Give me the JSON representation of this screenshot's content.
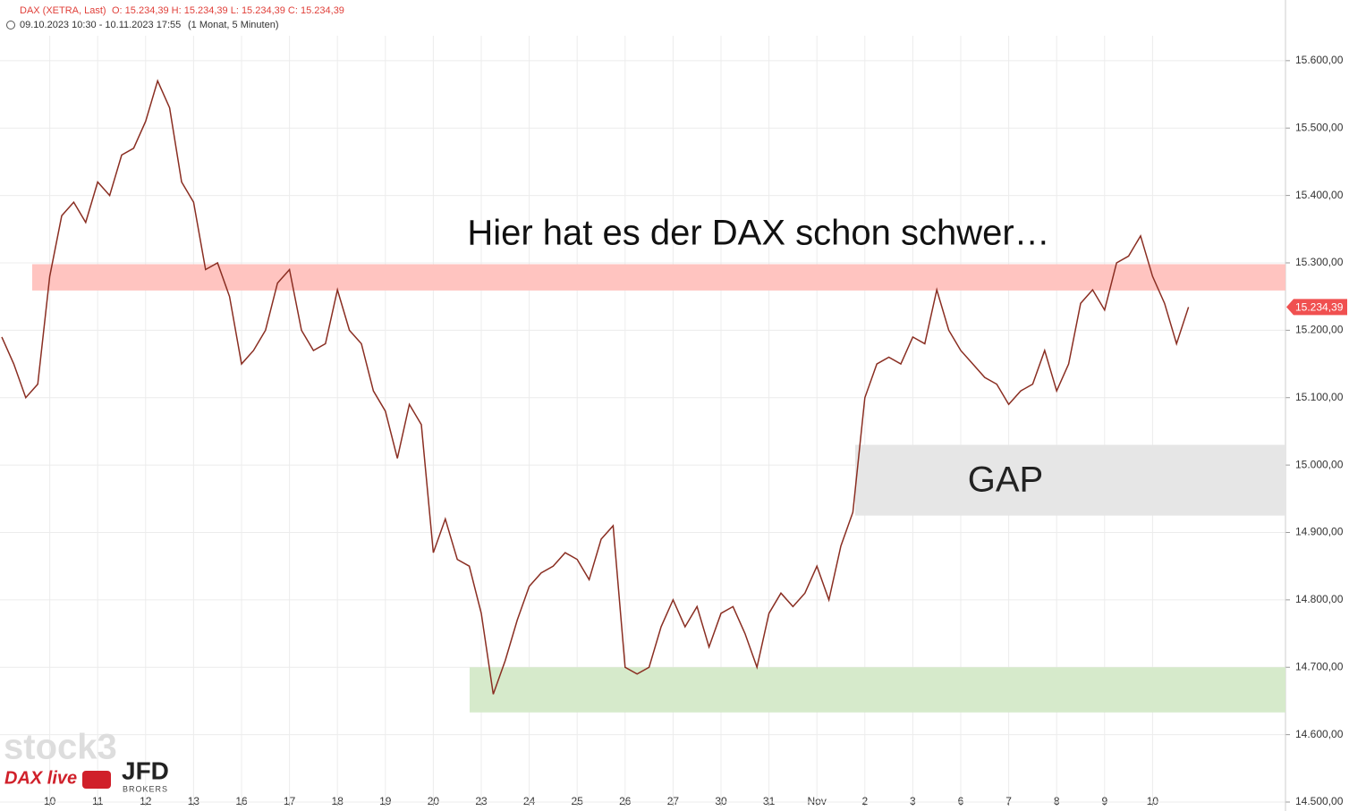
{
  "chart_data": {
    "type": "line",
    "header": {
      "instrument": "DAX (XETRA, Last)",
      "ohlc": "O: 15.234,39  H: 15.234,39  L: 15.234,39  C: 15.234,39",
      "range": "09.10.2023 10:30 - 10.11.2023 17:55",
      "period": "(1 Monat, 5 Minuten)"
    },
    "categories": [
      null,
      null,
      null,
      null,
      "10",
      null,
      null,
      null,
      "11",
      null,
      null,
      null,
      "12",
      null,
      null,
      null,
      "13",
      null,
      null,
      null,
      "16",
      null,
      null,
      null,
      "17",
      null,
      null,
      null,
      "18",
      null,
      null,
      null,
      "19",
      null,
      null,
      null,
      "20",
      null,
      null,
      null,
      "23",
      null,
      null,
      null,
      "24",
      null,
      null,
      null,
      "25",
      null,
      null,
      null,
      "26",
      null,
      null,
      null,
      "27",
      null,
      null,
      null,
      "30",
      null,
      null,
      null,
      "31",
      null,
      null,
      null,
      "Nov",
      null,
      null,
      null,
      "2",
      null,
      null,
      null,
      "3",
      null,
      null,
      null,
      "6",
      null,
      null,
      null,
      "7",
      null,
      null,
      null,
      "8",
      null,
      null,
      null,
      "9",
      null,
      null,
      null,
      "10",
      null,
      null,
      null
    ],
    "series": [
      {
        "color": "#8a2e22",
        "values": [
          15190,
          15150,
          15100,
          15120,
          15280,
          15370,
          15390,
          15360,
          15420,
          15400,
          15460,
          15470,
          15510,
          15570,
          15530,
          15420,
          15390,
          15290,
          15300,
          15250,
          15150,
          15170,
          15200,
          15270,
          15290,
          15200,
          15170,
          15180,
          15260,
          15200,
          15180,
          15110,
          15080,
          15010,
          15090,
          15060,
          14870,
          14920,
          14860,
          14850,
          14780,
          14660,
          14710,
          14770,
          14820,
          14840,
          14850,
          14870,
          14860,
          14830,
          14890,
          14910,
          14700,
          14690,
          14700,
          14760,
          14800,
          14760,
          14790,
          14730,
          14780,
          14790,
          14750,
          14700,
          14780,
          14810,
          14790,
          14810,
          14850,
          14800,
          14880,
          14930,
          15100,
          15150,
          15160,
          15150,
          15190,
          15180,
          15260,
          15200,
          15170,
          15150,
          15130,
          15120,
          15090,
          15110,
          15120,
          15170,
          15110,
          15150,
          15240,
          15260,
          15230,
          15300,
          15310,
          15340,
          15280,
          15240,
          15180,
          15234.39
        ]
      }
    ],
    "ylim": [
      14500,
      15690
    ],
    "yticks": [
      {
        "value": 14500,
        "label": "14.500,00"
      },
      {
        "value": 14600,
        "label": "14.600,00"
      },
      {
        "value": 14700,
        "label": "14.700,00"
      },
      {
        "value": 14800,
        "label": "14.800,00"
      },
      {
        "value": 14900,
        "label": "14.900,00"
      },
      {
        "value": 15000,
        "label": "15.000,00"
      },
      {
        "value": 15100,
        "label": "15.100,00"
      },
      {
        "value": 15200,
        "label": "15.200,00"
      },
      {
        "value": 15300,
        "label": "15.300,00"
      },
      {
        "value": 15400,
        "label": "15.400,00"
      },
      {
        "value": 15500,
        "label": "15.500,00"
      },
      {
        "value": 15600,
        "label": "15.600,00"
      }
    ],
    "grid": true,
    "last_price": {
      "value": 15234.39,
      "label": "15.234,39",
      "color": "#f05050"
    },
    "zones": [
      {
        "from": 15259,
        "to": 15298,
        "color": "#ffc4c0"
      },
      {
        "from": 14633,
        "to": 14700,
        "color": "#d6eacb"
      },
      {
        "from": 14925,
        "to": 15030,
        "color": "#e6e6e6",
        "label": "GAP"
      }
    ],
    "annotation": "Hier hat es der DAX schon schwer…",
    "branding": {
      "logo": "stock3",
      "show": "DAX live",
      "broker": "JFD",
      "broker_sub": "BROKERS"
    }
  }
}
